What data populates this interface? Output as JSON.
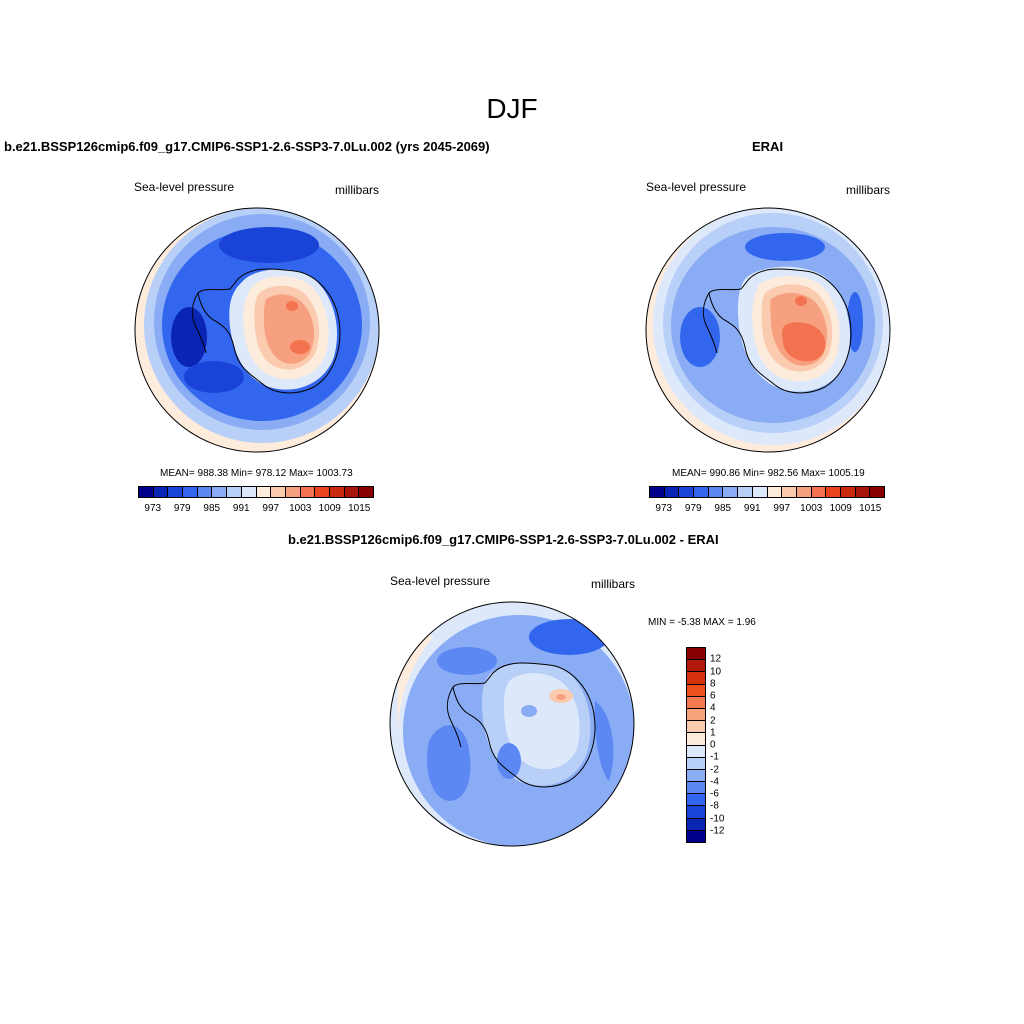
{
  "title": "DJF",
  "panels": [
    {
      "title": "b.e21.BSSP126cmip6.f09_g17.CMIP6-SSP1-2.6-SSP3-7.0Lu.002 (yrs 2045-2069)",
      "variable": "Sea-level pressure",
      "units": "millibars",
      "stats": "MEAN= 988.38  Min= 978.12  Max= 1003.73"
    },
    {
      "title": "ERAI",
      "variable": "Sea-level pressure",
      "units": "millibars",
      "stats": "MEAN= 990.86  Min= 982.56  Max= 1005.19"
    },
    {
      "title": "b.e21.BSSP126cmip6.f09_g17.CMIP6-SSP1-2.6-SSP3-7.0Lu.002 - ERAI",
      "variable": "Sea-level pressure",
      "units": "millibars",
      "stats": "MIN =  -5.38 MAX =   1.96"
    }
  ],
  "colorbar_abs": {
    "ticks": [
      "973",
      "979",
      "985",
      "991",
      "997",
      "1003",
      "1009",
      "1015"
    ],
    "colors": [
      "#00008a",
      "#0a24b4",
      "#1a44d8",
      "#3366ee",
      "#5b88f2",
      "#89acf5",
      "#b8cff8",
      "#dde9fb",
      "#fdebdc",
      "#fbcbb0",
      "#f7a07f",
      "#f37350",
      "#e9441e",
      "#c92a0f",
      "#a8160b",
      "#860000"
    ]
  },
  "colorbar_diff": {
    "ticks": [
      "12",
      "10",
      "8",
      "6",
      "4",
      "2",
      "1",
      "0",
      "-1",
      "-2",
      "-4",
      "-6",
      "-8",
      "-10",
      "-12"
    ],
    "colors": [
      "#860000",
      "#b01a08",
      "#d7320f",
      "#ef4e1f",
      "#f57a50",
      "#f9a27e",
      "#fbcbb0",
      "#fdebdc",
      "#dde9fb",
      "#b8cff8",
      "#89acf5",
      "#5b88f2",
      "#3366ee",
      "#1a44d8",
      "#0a24b4",
      "#00008a"
    ]
  }
}
